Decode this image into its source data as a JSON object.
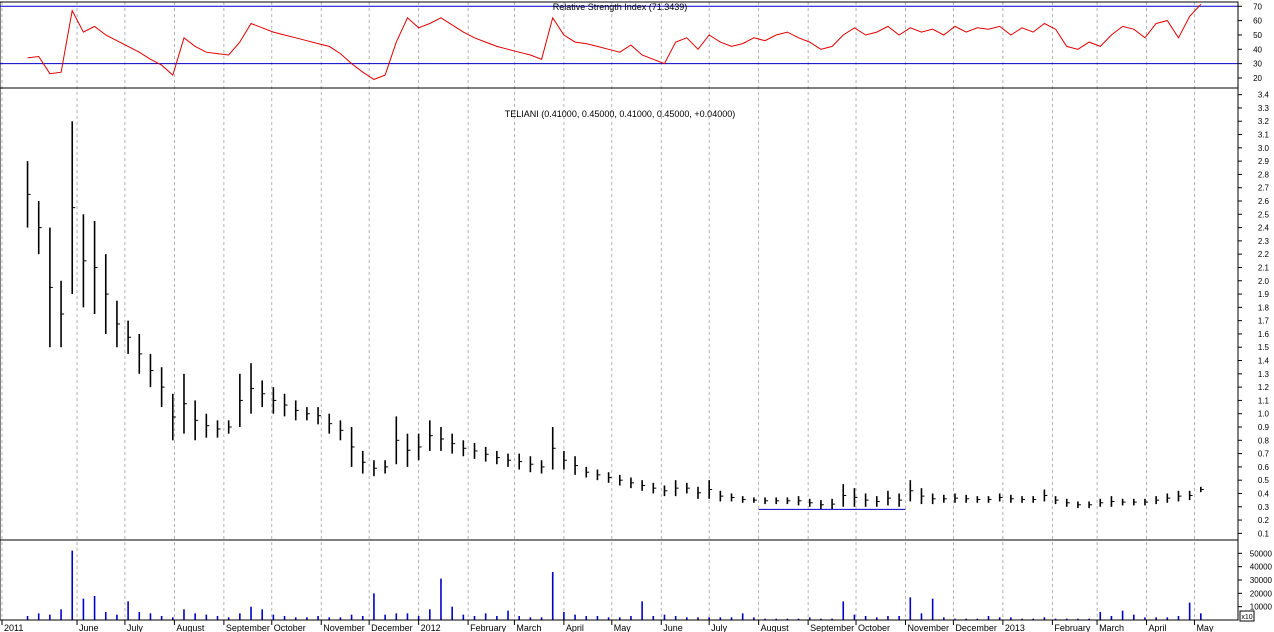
{
  "chart_data": [
    {
      "type": "line",
      "title": "Relative Strength Index (71.3439)",
      "ylim": [
        13,
        73
      ],
      "yticks": [
        20,
        30,
        40,
        50,
        60,
        70
      ],
      "reference_lines": [
        30,
        70
      ],
      "colors": {
        "line": "#e00000",
        "reference": "#0000c8"
      },
      "series": [
        {
          "x": [
            "2011-05-01",
            "2011-05-08",
            "2011-05-15",
            "2011-05-22",
            "2011-05-29",
            "2011-06-05",
            "2011-06-12",
            "2011-06-19",
            "2011-06-26",
            "2011-07-03",
            "2011-07-10",
            "2011-07-17",
            "2011-07-24",
            "2011-07-31",
            "2011-08-07",
            "2011-08-14",
            "2011-08-21",
            "2011-08-28",
            "2011-09-04",
            "2011-09-11",
            "2011-09-18",
            "2011-09-25",
            "2011-10-02",
            "2011-10-09",
            "2011-10-16",
            "2011-10-23",
            "2011-10-30",
            "2011-11-06",
            "2011-11-13",
            "2011-11-20",
            "2011-11-27",
            "2011-12-04",
            "2011-12-11",
            "2011-12-18",
            "2011-12-25",
            "2012-01-01",
            "2012-01-08",
            "2012-01-15",
            "2012-01-22",
            "2012-01-29",
            "2012-02-05",
            "2012-02-12",
            "2012-02-19",
            "2012-02-26",
            "2012-03-04",
            "2012-03-11",
            "2012-03-18",
            "2012-03-25",
            "2012-04-01",
            "2012-04-08",
            "2012-04-15",
            "2012-04-22",
            "2012-04-29",
            "2012-05-06",
            "2012-05-13",
            "2012-05-20",
            "2012-05-27",
            "2012-06-03",
            "2012-06-10",
            "2012-06-17",
            "2012-06-24",
            "2012-07-01",
            "2012-07-08",
            "2012-07-15",
            "2012-07-22",
            "2012-07-29",
            "2012-08-05",
            "2012-08-12",
            "2012-08-19",
            "2012-08-26",
            "2012-09-02",
            "2012-09-09",
            "2012-09-16",
            "2012-09-23",
            "2012-09-30",
            "2012-10-07",
            "2012-10-14",
            "2012-10-21",
            "2012-10-28",
            "2012-11-04",
            "2012-11-11",
            "2012-11-18",
            "2012-11-25",
            "2012-12-02",
            "2012-12-09",
            "2012-12-16",
            "2012-12-23",
            "2012-12-30",
            "2013-01-06",
            "2013-01-13",
            "2013-01-20",
            "2013-01-27",
            "2013-02-03",
            "2013-02-10",
            "2013-02-17",
            "2013-02-24",
            "2013-03-03",
            "2013-03-10",
            "2013-03-17",
            "2013-03-24",
            "2013-03-31",
            "2013-04-07",
            "2013-04-14",
            "2013-04-21",
            "2013-04-28",
            "2013-05-05"
          ],
          "values": [
            34,
            35,
            23,
            24,
            67,
            52,
            56,
            50,
            46,
            42,
            38,
            33,
            29,
            22,
            48,
            42,
            38,
            37,
            36,
            45,
            58,
            55,
            52,
            50,
            48,
            46,
            44,
            42,
            37,
            30,
            24,
            19,
            22,
            45,
            62,
            55,
            58,
            62,
            57,
            52,
            48,
            45,
            42,
            40,
            38,
            36,
            33,
            62,
            50,
            45,
            44,
            42,
            40,
            38,
            43,
            36,
            33,
            30,
            45,
            48,
            40,
            50,
            45,
            42,
            44,
            48,
            46,
            50,
            52,
            48,
            45,
            40,
            42,
            50,
            55,
            50,
            52,
            56,
            50,
            55,
            52,
            54,
            50,
            56,
            52,
            55,
            54,
            56,
            50,
            55,
            52,
            58,
            54,
            42,
            40,
            45,
            42,
            50,
            56,
            54,
            48,
            58,
            60,
            48,
            63,
            71.3439
          ]
        }
      ]
    },
    {
      "type": "bar",
      "title": "TELIANI (0.41000, 0.45000, 0.41000, 0.45000, +0.04000)",
      "ylim": [
        0.05,
        3.45
      ],
      "yticks": [
        0.1,
        0.2,
        0.3,
        0.4,
        0.5,
        0.6,
        0.7,
        0.8,
        0.9,
        1.0,
        1.1,
        1.2,
        1.3,
        1.4,
        1.5,
        1.6,
        1.7,
        1.8,
        1.9,
        2.0,
        2.1,
        2.2,
        2.3,
        2.4,
        2.5,
        2.6,
        2.7,
        2.8,
        2.9,
        3.0,
        3.1,
        3.2,
        3.3,
        3.4
      ],
      "bar_style": "ohlc",
      "series": [
        {
          "name": "TELIANI",
          "x": [
            "2011-05-01",
            "2011-05-08",
            "2011-05-15",
            "2011-05-22",
            "2011-05-29",
            "2011-06-05",
            "2011-06-12",
            "2011-06-19",
            "2011-06-26",
            "2011-07-03",
            "2011-07-10",
            "2011-07-17",
            "2011-07-24",
            "2011-07-31",
            "2011-08-07",
            "2011-08-14",
            "2011-08-21",
            "2011-08-28",
            "2011-09-04",
            "2011-09-11",
            "2011-09-18",
            "2011-09-25",
            "2011-10-02",
            "2011-10-09",
            "2011-10-16",
            "2011-10-23",
            "2011-10-30",
            "2011-11-06",
            "2011-11-13",
            "2011-11-20",
            "2011-11-27",
            "2011-12-04",
            "2011-12-11",
            "2011-12-18",
            "2011-12-25",
            "2012-01-01",
            "2012-01-08",
            "2012-01-15",
            "2012-01-22",
            "2012-01-29",
            "2012-02-05",
            "2012-02-12",
            "2012-02-19",
            "2012-02-26",
            "2012-03-04",
            "2012-03-11",
            "2012-03-18",
            "2012-03-25",
            "2012-04-01",
            "2012-04-08",
            "2012-04-15",
            "2012-04-22",
            "2012-04-29",
            "2012-05-06",
            "2012-05-13",
            "2012-05-20",
            "2012-05-27",
            "2012-06-03",
            "2012-06-10",
            "2012-06-17",
            "2012-06-24",
            "2012-07-01",
            "2012-07-08",
            "2012-07-15",
            "2012-07-22",
            "2012-07-29",
            "2012-08-05",
            "2012-08-12",
            "2012-08-19",
            "2012-08-26",
            "2012-09-02",
            "2012-09-09",
            "2012-09-16",
            "2012-09-23",
            "2012-09-30",
            "2012-10-07",
            "2012-10-14",
            "2012-10-21",
            "2012-10-28",
            "2012-11-04",
            "2012-11-11",
            "2012-11-18",
            "2012-11-25",
            "2012-12-02",
            "2012-12-09",
            "2012-12-16",
            "2012-12-23",
            "2012-12-30",
            "2013-01-06",
            "2013-01-13",
            "2013-01-20",
            "2013-01-27",
            "2013-02-03",
            "2013-02-10",
            "2013-02-17",
            "2013-02-24",
            "2013-03-03",
            "2013-03-10",
            "2013-03-17",
            "2013-03-24",
            "2013-03-31",
            "2013-04-07",
            "2013-04-14",
            "2013-04-21",
            "2013-04-28",
            "2013-05-05"
          ],
          "high": [
            2.9,
            2.6,
            2.4,
            2.0,
            3.2,
            2.5,
            2.45,
            2.2,
            1.85,
            1.7,
            1.6,
            1.45,
            1.35,
            1.15,
            1.3,
            1.1,
            1.0,
            0.95,
            0.95,
            1.3,
            1.38,
            1.25,
            1.2,
            1.15,
            1.1,
            1.05,
            1.05,
            1.0,
            0.95,
            0.9,
            0.72,
            0.65,
            0.65,
            0.98,
            0.85,
            0.85,
            0.95,
            0.9,
            0.85,
            0.8,
            0.78,
            0.75,
            0.72,
            0.7,
            0.7,
            0.68,
            0.65,
            0.9,
            0.72,
            0.68,
            0.6,
            0.58,
            0.56,
            0.54,
            0.52,
            0.5,
            0.48,
            0.46,
            0.5,
            0.48,
            0.45,
            0.5,
            0.42,
            0.4,
            0.38,
            0.37,
            0.37,
            0.37,
            0.37,
            0.38,
            0.36,
            0.35,
            0.36,
            0.47,
            0.44,
            0.4,
            0.38,
            0.42,
            0.4,
            0.5,
            0.44,
            0.4,
            0.39,
            0.4,
            0.39,
            0.38,
            0.38,
            0.4,
            0.39,
            0.38,
            0.38,
            0.43,
            0.38,
            0.36,
            0.34,
            0.34,
            0.36,
            0.38,
            0.36,
            0.36,
            0.36,
            0.38,
            0.4,
            0.42,
            0.42,
            0.45
          ],
          "low": [
            2.4,
            2.2,
            1.5,
            1.5,
            1.9,
            1.8,
            1.75,
            1.6,
            1.5,
            1.45,
            1.3,
            1.2,
            1.05,
            0.8,
            0.85,
            0.8,
            0.82,
            0.82,
            0.85,
            0.9,
            1.0,
            1.05,
            1.0,
            0.98,
            0.95,
            0.95,
            0.92,
            0.85,
            0.8,
            0.6,
            0.55,
            0.53,
            0.55,
            0.62,
            0.6,
            0.65,
            0.72,
            0.72,
            0.7,
            0.68,
            0.66,
            0.64,
            0.62,
            0.6,
            0.58,
            0.56,
            0.55,
            0.58,
            0.58,
            0.54,
            0.52,
            0.5,
            0.48,
            0.46,
            0.44,
            0.42,
            0.4,
            0.38,
            0.38,
            0.4,
            0.36,
            0.36,
            0.34,
            0.34,
            0.33,
            0.33,
            0.32,
            0.32,
            0.32,
            0.31,
            0.3,
            0.28,
            0.28,
            0.3,
            0.3,
            0.3,
            0.3,
            0.31,
            0.3,
            0.34,
            0.32,
            0.32,
            0.33,
            0.33,
            0.33,
            0.33,
            0.33,
            0.34,
            0.33,
            0.33,
            0.33,
            0.34,
            0.32,
            0.3,
            0.29,
            0.29,
            0.3,
            0.3,
            0.31,
            0.31,
            0.31,
            0.32,
            0.33,
            0.34,
            0.35,
            0.41
          ]
        }
      ],
      "annotations": [
        {
          "type": "horizontal_segment",
          "value": 0.28,
          "from": "2012-08-01",
          "to": "2012-11-01",
          "color": "#0000c8"
        }
      ]
    },
    {
      "type": "bar",
      "ylim": [
        0,
        60000
      ],
      "yticks": [
        10000,
        20000,
        30000,
        40000,
        50000
      ],
      "colors": {
        "bar": "#0000c8"
      },
      "series": [
        {
          "x": [
            "2011-05-01",
            "2011-05-08",
            "2011-05-15",
            "2011-05-22",
            "2011-05-29",
            "2011-06-05",
            "2011-06-12",
            "2011-06-19",
            "2011-06-26",
            "2011-07-03",
            "2011-07-10",
            "2011-07-17",
            "2011-07-24",
            "2011-07-31",
            "2011-08-07",
            "2011-08-14",
            "2011-08-21",
            "2011-08-28",
            "2011-09-04",
            "2011-09-11",
            "2011-09-18",
            "2011-09-25",
            "2011-10-02",
            "2011-10-09",
            "2011-10-16",
            "2011-10-23",
            "2011-10-30",
            "2011-11-06",
            "2011-11-13",
            "2011-11-20",
            "2011-11-27",
            "2011-12-04",
            "2011-12-11",
            "2011-12-18",
            "2011-12-25",
            "2012-01-01",
            "2012-01-08",
            "2012-01-15",
            "2012-01-22",
            "2012-01-29",
            "2012-02-05",
            "2012-02-12",
            "2012-02-19",
            "2012-02-26",
            "2012-03-04",
            "2012-03-11",
            "2012-03-18",
            "2012-03-25",
            "2012-04-01",
            "2012-04-08",
            "2012-04-15",
            "2012-04-22",
            "2012-04-29",
            "2012-05-06",
            "2012-05-13",
            "2012-05-20",
            "2012-05-27",
            "2012-06-03",
            "2012-06-10",
            "2012-06-17",
            "2012-06-24",
            "2012-07-01",
            "2012-07-08",
            "2012-07-15",
            "2012-07-22",
            "2012-07-29",
            "2012-08-05",
            "2012-08-12",
            "2012-08-19",
            "2012-08-26",
            "2012-09-02",
            "2012-09-09",
            "2012-09-16",
            "2012-09-23",
            "2012-09-30",
            "2012-10-07",
            "2012-10-14",
            "2012-10-21",
            "2012-10-28",
            "2012-11-04",
            "2012-11-11",
            "2012-11-18",
            "2012-11-25",
            "2012-12-02",
            "2012-12-09",
            "2012-12-16",
            "2012-12-23",
            "2012-12-30",
            "2013-01-06",
            "2013-01-13",
            "2013-01-20",
            "2013-01-27",
            "2013-02-03",
            "2013-02-10",
            "2013-02-17",
            "2013-02-24",
            "2013-03-03",
            "2013-03-10",
            "2013-03-17",
            "2013-03-24",
            "2013-03-31",
            "2013-04-07",
            "2013-04-14",
            "2013-04-21",
            "2013-04-28",
            "2013-05-05"
          ],
          "values": [
            3000,
            5000,
            4000,
            8000,
            52000,
            16000,
            18000,
            6000,
            4000,
            14000,
            6000,
            5000,
            3000,
            2000,
            8000,
            5000,
            4000,
            3000,
            2000,
            5000,
            10000,
            8000,
            4000,
            3000,
            2000,
            2000,
            3000,
            2000,
            2000,
            4000,
            3000,
            20000,
            4000,
            5000,
            5000,
            3000,
            8000,
            31000,
            10000,
            4000,
            3000,
            5000,
            3000,
            7000,
            3000,
            2000,
            2000,
            36000,
            6000,
            4000,
            3000,
            3000,
            2000,
            2000,
            3000,
            14000,
            3000,
            4000,
            3000,
            2000,
            2000,
            2000,
            2000,
            2000,
            5000,
            2000,
            1000,
            1000,
            1000,
            1000,
            2000,
            1000,
            1000,
            14000,
            4000,
            3000,
            2000,
            3000,
            3000,
            17000,
            5000,
            16000,
            2000,
            1000,
            1000,
            1000,
            3000,
            2000,
            2000,
            1000,
            1000,
            2000,
            1000,
            1000,
            1000,
            1000,
            6000,
            3000,
            7000,
            4000,
            2000,
            2000,
            2000,
            3000,
            13000,
            5000
          ]
        }
      ]
    }
  ],
  "x_axis": {
    "labels": [
      {
        "date": "2011-04-15",
        "label": "2011"
      },
      {
        "date": "2011-06-01",
        "label": "June"
      },
      {
        "date": "2011-07-01",
        "label": "July"
      },
      {
        "date": "2011-08-01",
        "label": "August"
      },
      {
        "date": "2011-09-01",
        "label": "September"
      },
      {
        "date": "2011-10-01",
        "label": "October"
      },
      {
        "date": "2011-11-01",
        "label": "November"
      },
      {
        "date": "2011-12-01",
        "label": "December"
      },
      {
        "date": "2012-01-01",
        "label": "2012"
      },
      {
        "date": "2012-02-01",
        "label": "February"
      },
      {
        "date": "2012-03-01",
        "label": "March"
      },
      {
        "date": "2012-04-01",
        "label": "April"
      },
      {
        "date": "2012-05-01",
        "label": "May"
      },
      {
        "date": "2012-06-01",
        "label": "June"
      },
      {
        "date": "2012-07-01",
        "label": "July"
      },
      {
        "date": "2012-08-01",
        "label": "August"
      },
      {
        "date": "2012-09-01",
        "label": "September"
      },
      {
        "date": "2012-10-01",
        "label": "October"
      },
      {
        "date": "2012-11-01",
        "label": "November"
      },
      {
        "date": "2012-12-01",
        "label": "December"
      },
      {
        "date": "2013-01-01",
        "label": "2013"
      },
      {
        "date": "2013-02-01",
        "label": "February"
      },
      {
        "date": "2013-03-01",
        "label": "March"
      },
      {
        "date": "2013-04-01",
        "label": "April"
      },
      {
        "date": "2013-05-01",
        "label": "May"
      }
    ],
    "range": [
      "2011-04-15",
      "2013-05-12"
    ]
  },
  "volume_unit_label": "x10",
  "grid": true
}
